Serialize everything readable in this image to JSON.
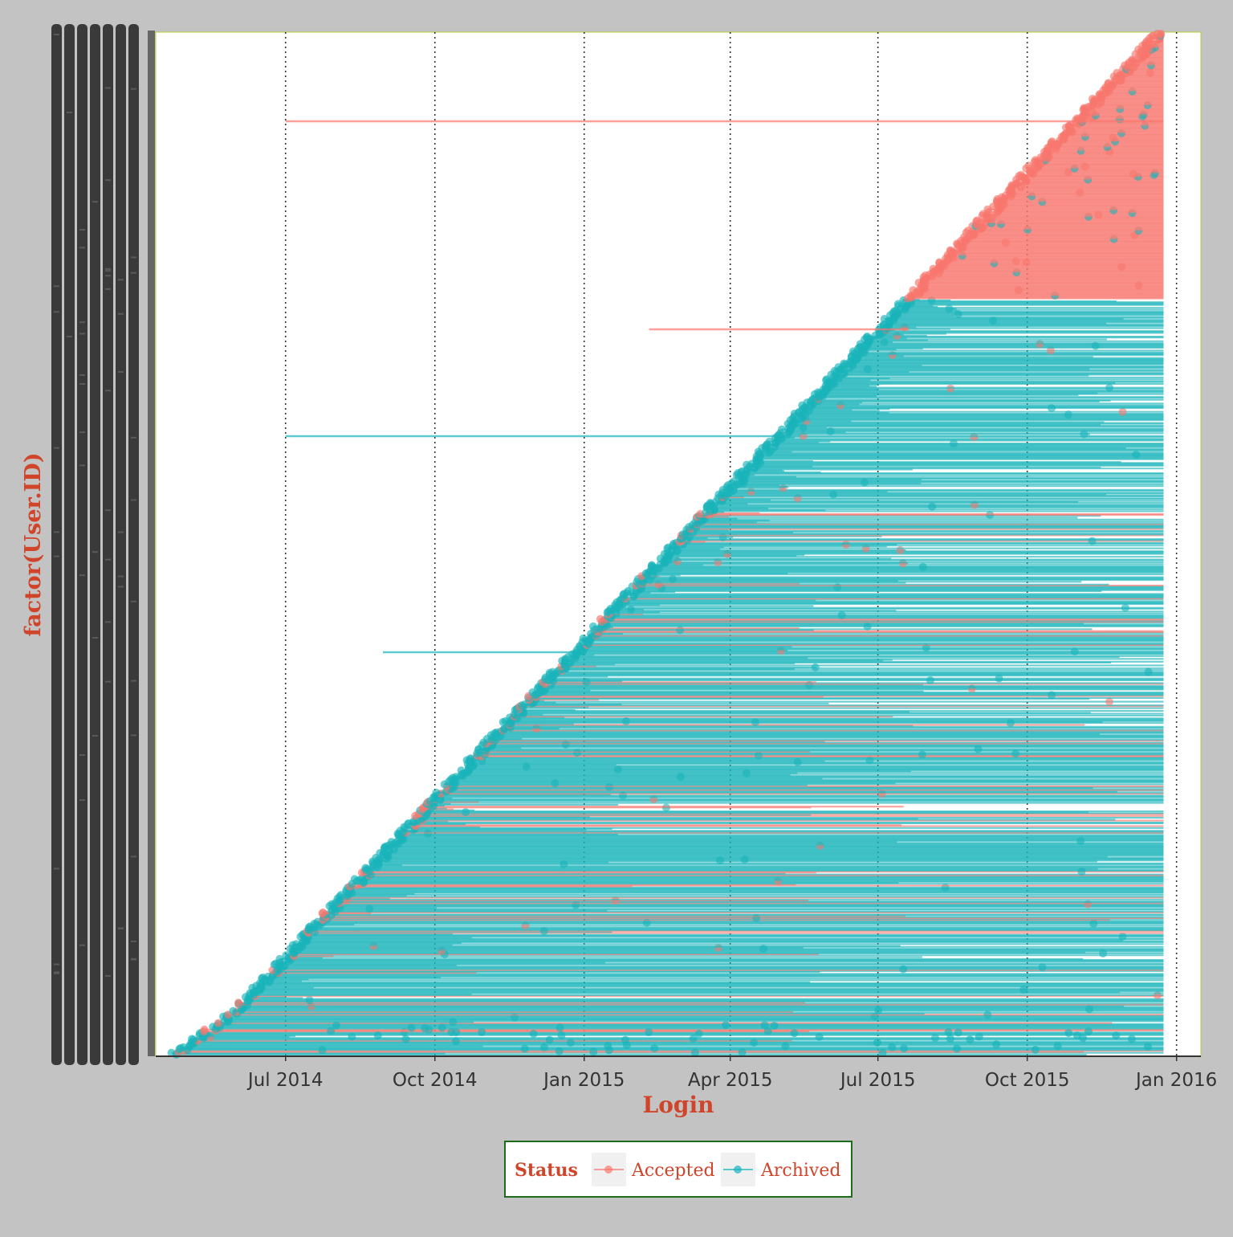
{
  "chart_data": {
    "type": "scatter",
    "subtype": "dumbbell / segment plot",
    "xlabel": "Login",
    "ylabel": "factor(User.ID)",
    "x_tick_labels": [
      "Jul 2014",
      "Oct 2014",
      "Jan 2015",
      "Apr 2015",
      "Jul 2015",
      "Oct 2015",
      "Jan 2016"
    ],
    "x_ticks": [
      "2014-07-01",
      "2014-10-01",
      "2015-01-01",
      "2015-04-01",
      "2015-07-01",
      "2015-10-01",
      "2016-01-01"
    ],
    "xlim": [
      "2014-04-12",
      "2016-01-16"
    ],
    "y_categories_count_approx": 1500,
    "y_tick_labels_legible": false,
    "grid": {
      "x_major": "dotted",
      "y": "none"
    },
    "legend": {
      "title": "Status",
      "position": "bottom",
      "entries": [
        {
          "name": "Accepted",
          "color": "#f8766d"
        },
        {
          "name": "Archived",
          "color": "#19b4ba"
        }
      ]
    },
    "series": [
      {
        "name": "Archived",
        "color": "#19b4ba",
        "description_points": [
          {
            "login_start": "2014-04-22",
            "login_end": "2014-06-25"
          },
          {
            "login_start": "2014-07-01",
            "login_end": "2015-12-24"
          },
          {
            "login_start": "2015-01-01",
            "login_end": "2015-12-24"
          },
          {
            "login_start": "2015-07-01",
            "login_end": "2015-12-24"
          }
        ],
        "segments_summary": [
          {
            "first_login": "2014-04-22",
            "last_login": "2014-06-10"
          },
          {
            "first_login": "2014-06-25",
            "last_login": "2015-05-03"
          },
          {
            "first_login": "2014-08-10",
            "last_login": "2015-06-30"
          },
          {
            "first_login": "2014-10-01",
            "last_login": "2015-12-24"
          },
          {
            "first_login": "2015-01-01",
            "last_login": "2015-12-24"
          },
          {
            "first_login": "2015-04-01",
            "last_login": "2015-12-24"
          },
          {
            "first_login": "2015-07-01",
            "last_login": "2015-12-24"
          },
          {
            "first_login": "2015-08-31",
            "last_login": "2015-12-20"
          }
        ]
      },
      {
        "name": "Accepted",
        "color": "#f8766d",
        "segments_summary": [
          {
            "first_login": "2015-08-30",
            "last_login": "2015-12-24"
          },
          {
            "first_login": "2015-10-01",
            "last_login": "2015-12-24"
          },
          {
            "first_login": "2015-11-20",
            "last_login": "2015-12-24"
          },
          {
            "first_login": "2015-12-15",
            "last_login": "2015-12-24"
          },
          {
            "first_login": "2014-07-01",
            "last_login": "2015-12-24"
          },
          {
            "first_login": "2015-02-15",
            "last_login": "2015-07-01"
          },
          {
            "first_login": "2015-05-03",
            "last_login": "2015-12-24"
          },
          {
            "first_login": "2015-07-01",
            "last_login": "2015-12-24"
          }
        ]
      }
    ]
  }
}
